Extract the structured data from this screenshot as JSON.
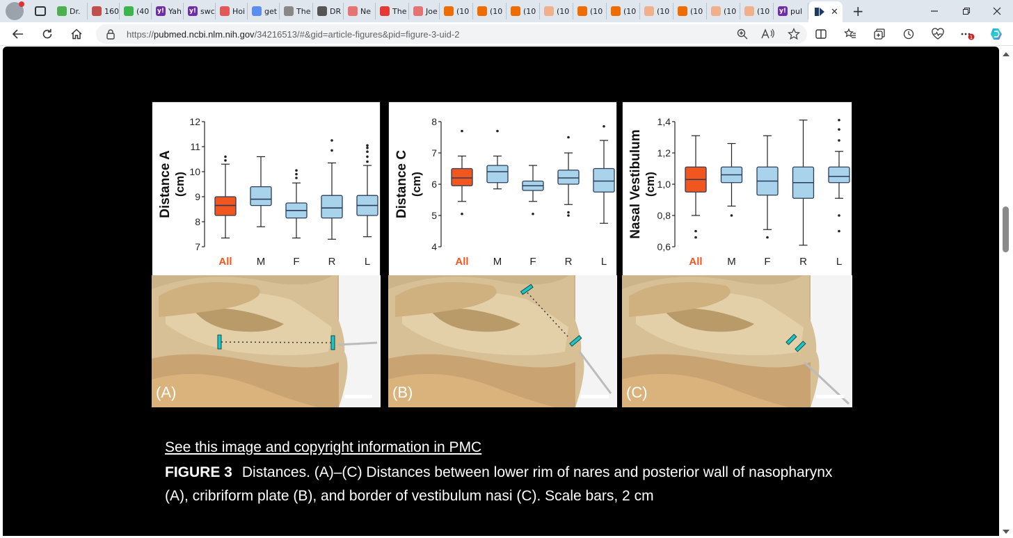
{
  "browser": {
    "tabs": [
      {
        "label": "Dr.",
        "color": "#4caf50"
      },
      {
        "label": "160",
        "color": "#c0504d"
      },
      {
        "label": "(40",
        "color": "#3db54a"
      },
      {
        "label": "Yah",
        "color": "#6f2da8"
      },
      {
        "label": "swc",
        "color": "#6f2da8"
      },
      {
        "label": "Hoi",
        "color": "#e25757"
      },
      {
        "label": "get",
        "color": "#5b8def"
      },
      {
        "label": "The",
        "color": "#888888"
      },
      {
        "label": "DR",
        "color": "#555555"
      },
      {
        "label": "Ne",
        "color": "#e57373"
      },
      {
        "label": "The",
        "color": "#e53935"
      },
      {
        "label": "Joe",
        "color": "#e57373"
      },
      {
        "label": "(10",
        "color": "#ef6c00"
      },
      {
        "label": "(10",
        "color": "#ef6c00"
      },
      {
        "label": "(10",
        "color": "#ef6c00"
      },
      {
        "label": "(10",
        "color": "#f0b08a"
      },
      {
        "label": "(10",
        "color": "#ef6c00"
      },
      {
        "label": "(10",
        "color": "#ef6c00"
      },
      {
        "label": "(10",
        "color": "#f0b08a"
      },
      {
        "label": "(10",
        "color": "#ef6c00"
      },
      {
        "label": "(10",
        "color": "#f0b08a"
      },
      {
        "label": "(10",
        "color": "#f0b08a"
      },
      {
        "label": "pul",
        "color": "#6f2da8"
      }
    ],
    "yahoo_glyph": "y!",
    "active_tab_close": "✕",
    "new_tab": "+",
    "url_prefix": "https://",
    "url_host": "pubmed.ncbi.nlm.nih.gov",
    "url_path": "/34216513/#&gid=article-figures&pid=figure-3-uid-2",
    "notification_count": "1"
  },
  "figure": {
    "panels": [
      {
        "ylabel": "Distance A",
        "yunit": "(cm)",
        "ticks": [
          "12",
          "11",
          "10",
          "9",
          "8",
          "7"
        ],
        "ymin": 7,
        "ymax": 12,
        "categories": [
          "All",
          "M",
          "F",
          "R",
          "L"
        ],
        "boxes": [
          {
            "min": 7.35,
            "q1": 8.25,
            "med": 8.65,
            "q3": 9.0,
            "max": 10.3,
            "outliers": [
              10.45,
              10.6
            ]
          },
          {
            "min": 7.8,
            "q1": 8.65,
            "med": 8.9,
            "q3": 9.4,
            "max": 10.6,
            "outliers": []
          },
          {
            "min": 7.35,
            "q1": 8.15,
            "med": 8.45,
            "q3": 8.75,
            "max": 9.55,
            "outliers": [
              9.75,
              9.9,
              10.05
            ]
          },
          {
            "min": 7.3,
            "q1": 8.15,
            "med": 8.55,
            "q3": 9.05,
            "max": 10.35,
            "outliers": [
              10.85,
              11.25
            ]
          },
          {
            "min": 7.4,
            "q1": 8.25,
            "med": 8.65,
            "q3": 9.05,
            "max": 10.25,
            "outliers": [
              10.4,
              10.6,
              10.8,
              10.95,
              11.05
            ]
          }
        ],
        "tag": "(A)"
      },
      {
        "ylabel": "Distance C",
        "yunit": "(cm)",
        "ticks": [
          "8",
          "7",
          "6",
          "5",
          "4"
        ],
        "ymin": 4,
        "ymax": 8,
        "categories": [
          "All",
          "M",
          "F",
          "R",
          "L"
        ],
        "boxes": [
          {
            "min": 5.45,
            "q1": 5.95,
            "med": 6.2,
            "q3": 6.5,
            "max": 6.9,
            "outliers": [
              5.05,
              7.7
            ]
          },
          {
            "min": 5.85,
            "q1": 6.05,
            "med": 6.4,
            "q3": 6.6,
            "max": 6.9,
            "outliers": [
              7.7
            ]
          },
          {
            "min": 5.45,
            "q1": 5.8,
            "med": 5.95,
            "q3": 6.1,
            "max": 6.6,
            "outliers": [
              5.05
            ]
          },
          {
            "min": 5.35,
            "q1": 6.0,
            "med": 6.2,
            "q3": 6.45,
            "max": 7.0,
            "outliers": [
              5.0,
              5.1,
              7.5
            ]
          },
          {
            "min": 4.75,
            "q1": 5.75,
            "med": 6.1,
            "q3": 6.5,
            "max": 7.4,
            "outliers": [
              7.85
            ]
          }
        ],
        "tag": "(B)"
      },
      {
        "ylabel": "Nasal Vestibulum",
        "yunit": "(cm)",
        "ticks": [
          "1,4",
          "1,2",
          "1,0",
          "0,8",
          "0,6"
        ],
        "ymin": 0.6,
        "ymax": 1.4,
        "categories": [
          "All",
          "M",
          "F",
          "R",
          "L"
        ],
        "boxes": [
          {
            "min": 0.8,
            "q1": 0.95,
            "med": 1.03,
            "q3": 1.11,
            "max": 1.31,
            "outliers": [
              0.66,
              0.7
            ]
          },
          {
            "min": 0.86,
            "q1": 1.01,
            "med": 1.06,
            "q3": 1.11,
            "max": 1.26,
            "outliers": [
              0.8
            ]
          },
          {
            "min": 0.71,
            "q1": 0.93,
            "med": 1.02,
            "q3": 1.11,
            "max": 1.31,
            "outliers": [
              0.66
            ]
          },
          {
            "min": 0.61,
            "q1": 0.91,
            "med": 1.01,
            "q3": 1.11,
            "max": 1.41,
            "outliers": []
          },
          {
            "min": 0.91,
            "q1": 1.01,
            "med": 1.05,
            "q3": 1.11,
            "max": 1.21,
            "outliers": [
              0.7,
              0.8,
              1.28,
              1.35,
              1.41
            ]
          }
        ],
        "tag": "(C)"
      }
    ],
    "colors": {
      "all": "#f0561d",
      "group": "#a9d3ea",
      "all_label": "#f0561d"
    }
  },
  "caption": {
    "link": "See this image and copyright information in PMC",
    "label": "FIGURE 3",
    "text": "Distances. (A)–(C) Distances between lower rim of nares and posterior wall of nasopharynx (A), cribriform plate (B), and border of vestibulum nasi (C). Scale bars, 2 cm"
  }
}
